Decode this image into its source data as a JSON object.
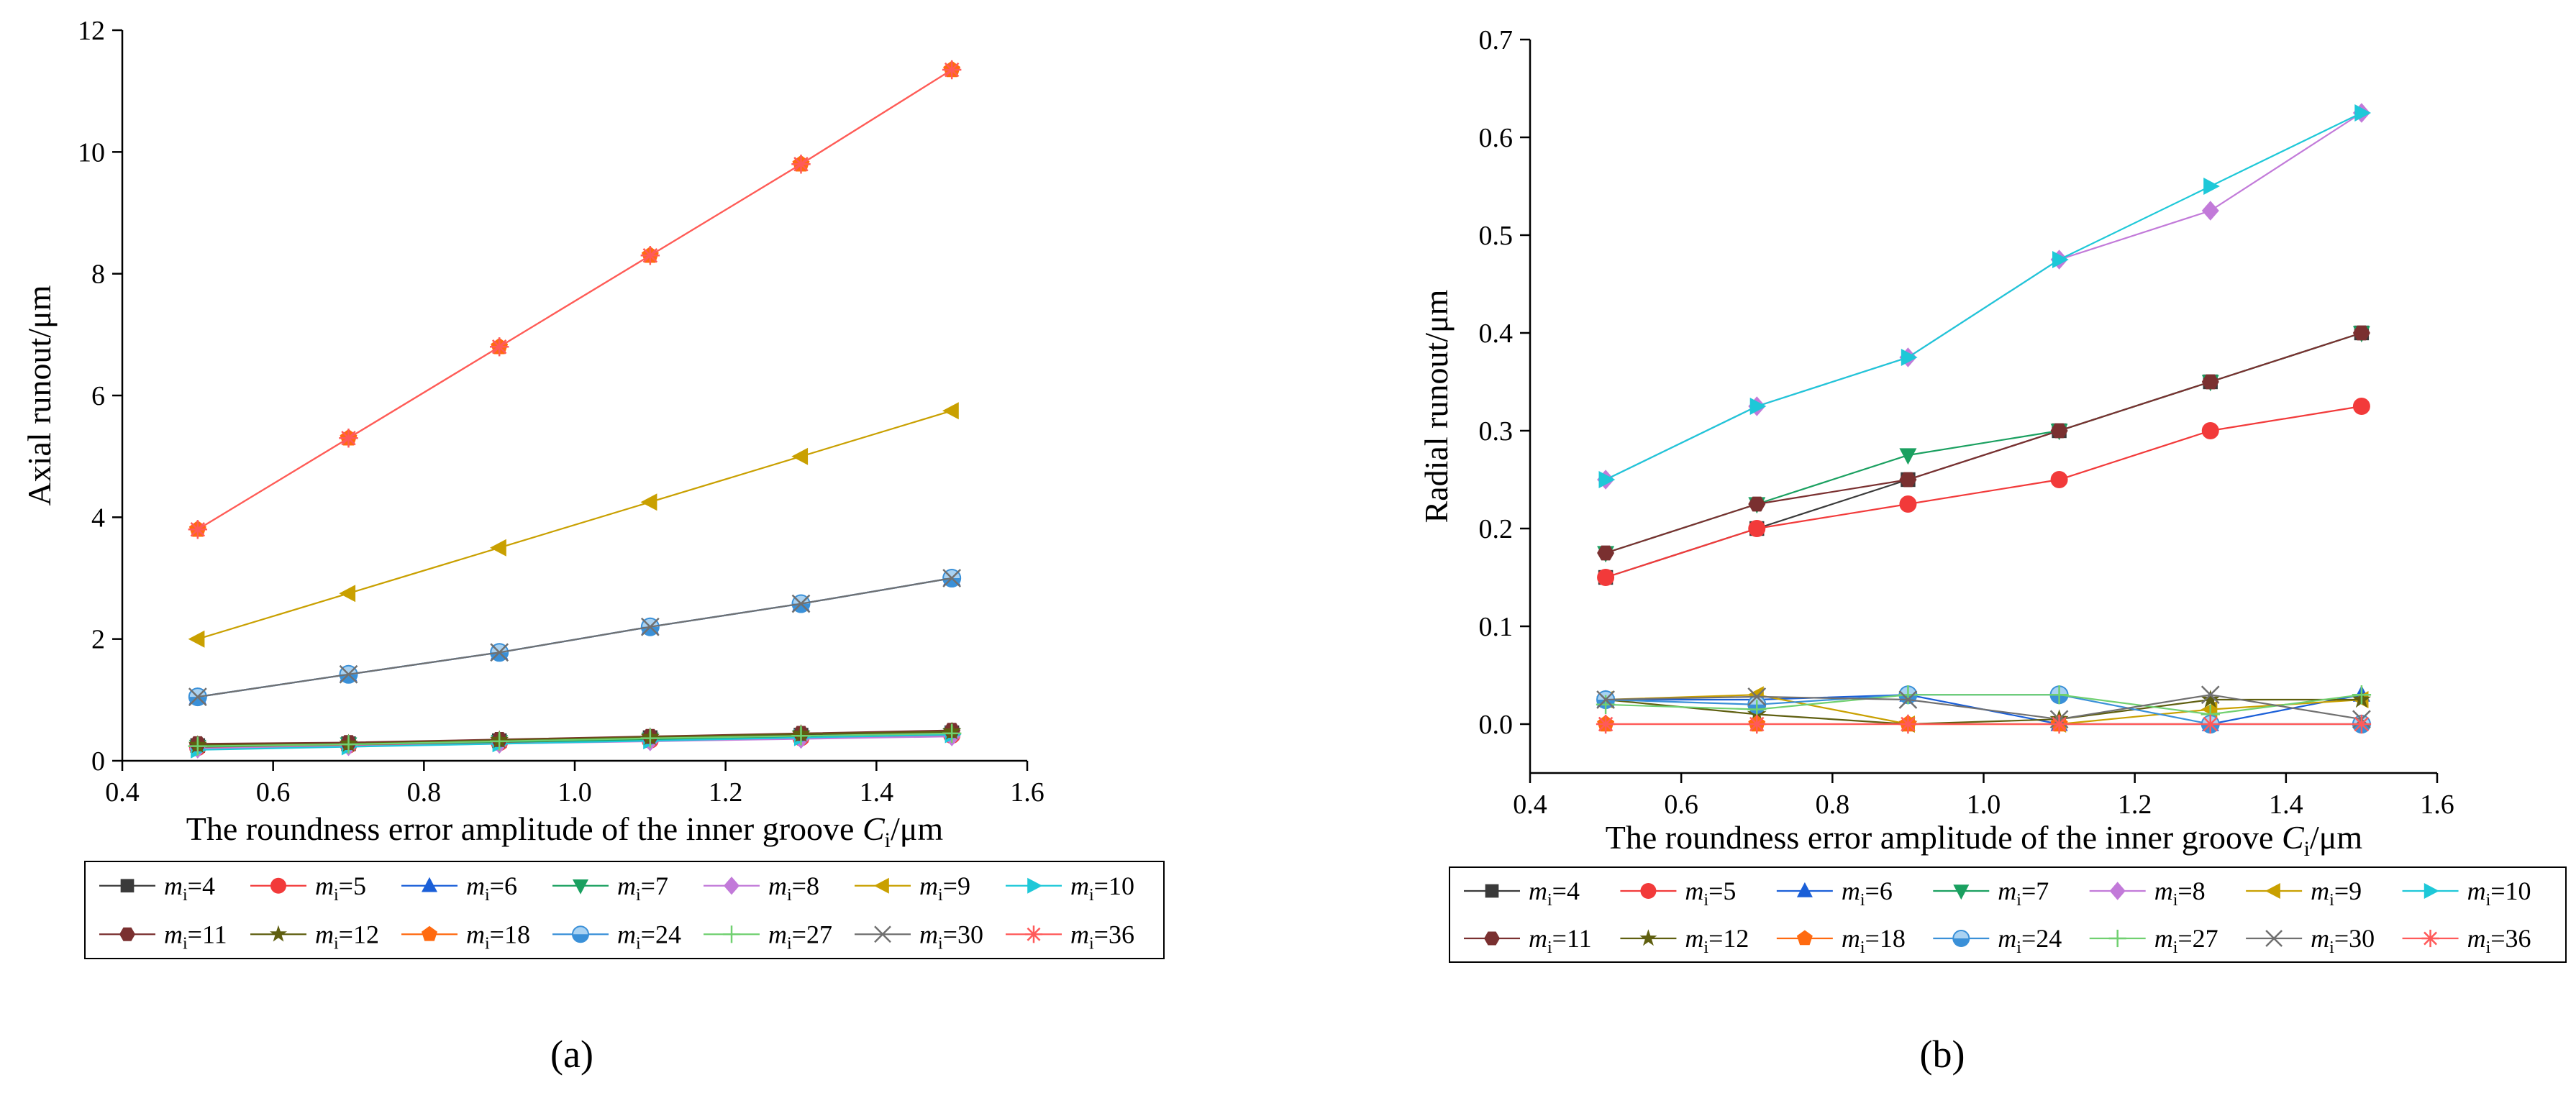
{
  "panel_labels": [
    "(a)",
    "(b)"
  ],
  "legend": [
    {
      "m": "4",
      "color": "#3a3a3a",
      "marker": "square"
    },
    {
      "m": "5",
      "color": "#f23a3a",
      "marker": "circle"
    },
    {
      "m": "6",
      "color": "#1a5fd8",
      "marker": "triangle-up"
    },
    {
      "m": "7",
      "color": "#1aa060",
      "marker": "triangle-down"
    },
    {
      "m": "8",
      "color": "#c27ad9",
      "marker": "diamond"
    },
    {
      "m": "9",
      "color": "#c9a000",
      "marker": "triangle-left"
    },
    {
      "m": "10",
      "color": "#1ec8d8",
      "marker": "triangle-right"
    },
    {
      "m": "11",
      "color": "#7a3030",
      "marker": "hexagon"
    },
    {
      "m": "12",
      "color": "#5f5f10",
      "marker": "star"
    },
    {
      "m": "18",
      "color": "#ff6a10",
      "marker": "pentagon"
    },
    {
      "m": "24",
      "color": "#3a90d8",
      "marker": "circle-half"
    },
    {
      "m": "27",
      "color": "#70d070",
      "marker": "plus"
    },
    {
      "m": "30",
      "color": "#707070",
      "marker": "cross"
    },
    {
      "m": "36",
      "color": "#ff5a5a",
      "marker": "asterisk"
    }
  ],
  "legend_prefix": "m",
  "legend_sub": "i",
  "legend_eq": "=",
  "chart_data": [
    {
      "type": "line",
      "id": "a",
      "xlabel_main": "The roundness error amplitude of the inner groove  ",
      "xlabel_var": "C",
      "xlabel_sub": "i",
      "xlabel_unit": "/μm",
      "ylabel": "Axial runout/μm",
      "xlim": [
        0.4,
        1.6
      ],
      "ylim": [
        0,
        12
      ],
      "xticks": [
        0.4,
        0.6,
        0.8,
        1.0,
        1.2,
        1.4,
        1.6
      ],
      "xtick_labels": [
        "0.4",
        "0.6",
        "0.8",
        "1.0",
        "1.2",
        "1.4",
        "1.6"
      ],
      "yticks": [
        0,
        2,
        4,
        6,
        8,
        10,
        12
      ],
      "ytick_labels": [
        "0",
        "2",
        "4",
        "6",
        "8",
        "10",
        "12"
      ],
      "x": [
        0.5,
        0.7,
        0.9,
        1.1,
        1.3,
        1.5
      ],
      "series": [
        {
          "name": "4",
          "values": [
            0.25,
            0.28,
            0.33,
            0.38,
            0.42,
            0.46
          ]
        },
        {
          "name": "5",
          "values": [
            0.22,
            0.26,
            0.3,
            0.34,
            0.38,
            0.42
          ]
        },
        {
          "name": "6",
          "values": [
            1.05,
            1.42,
            1.78,
            2.2,
            2.58,
            3.0
          ]
        },
        {
          "name": "7",
          "values": [
            0.23,
            0.27,
            0.31,
            0.35,
            0.39,
            0.43
          ]
        },
        {
          "name": "8",
          "values": [
            0.2,
            0.24,
            0.28,
            0.32,
            0.36,
            0.4
          ]
        },
        {
          "name": "9",
          "values": [
            2.0,
            2.75,
            3.5,
            4.25,
            5.0,
            5.75
          ]
        },
        {
          "name": "10",
          "values": [
            0.18,
            0.23,
            0.28,
            0.33,
            0.38,
            0.43
          ]
        },
        {
          "name": "11",
          "values": [
            0.28,
            0.3,
            0.35,
            0.4,
            0.45,
            0.5
          ]
        },
        {
          "name": "12",
          "values": [
            0.26,
            0.28,
            0.34,
            0.39,
            0.44,
            0.48
          ]
        },
        {
          "name": "18",
          "values": [
            3.8,
            5.3,
            6.8,
            8.3,
            9.8,
            11.35
          ]
        },
        {
          "name": "24",
          "values": [
            1.05,
            1.42,
            1.78,
            2.2,
            2.58,
            3.0
          ]
        },
        {
          "name": "27",
          "values": [
            0.24,
            0.27,
            0.32,
            0.37,
            0.41,
            0.45
          ]
        },
        {
          "name": "30",
          "values": [
            1.05,
            1.42,
            1.78,
            2.2,
            2.58,
            3.0
          ]
        },
        {
          "name": "36",
          "values": [
            3.8,
            5.3,
            6.8,
            8.3,
            9.8,
            11.35
          ]
        }
      ]
    },
    {
      "type": "line",
      "id": "b",
      "xlabel_main": "The roundness error amplitude of the inner groove ",
      "xlabel_var": "C",
      "xlabel_sub": "i",
      "xlabel_unit": "/μm",
      "ylabel": "Radial runout/μm",
      "xlim": [
        0.4,
        1.6
      ],
      "ylim": [
        -0.05,
        0.7
      ],
      "xticks": [
        0.4,
        0.6,
        0.8,
        1.0,
        1.2,
        1.4,
        1.6
      ],
      "xtick_labels": [
        "0.4",
        "0.6",
        "0.8",
        "1.0",
        "1.2",
        "1.4",
        "1.6"
      ],
      "yticks": [
        0.0,
        0.1,
        0.2,
        0.3,
        0.4,
        0.5,
        0.6,
        0.7
      ],
      "ytick_labels": [
        "0.0",
        "0.1",
        "0.2",
        "0.3",
        "0.4",
        "0.5",
        "0.6",
        "0.7"
      ],
      "x": [
        0.5,
        0.7,
        0.9,
        1.1,
        1.3,
        1.5
      ],
      "series": [
        {
          "name": "4",
          "values": [
            0.15,
            0.2,
            0.25,
            0.3,
            0.35,
            0.4
          ]
        },
        {
          "name": "5",
          "values": [
            0.15,
            0.2,
            0.225,
            0.25,
            0.3,
            0.325
          ]
        },
        {
          "name": "6",
          "values": [
            0.025,
            0.025,
            0.03,
            0.0,
            0.0,
            0.03
          ]
        },
        {
          "name": "7",
          "values": [
            0.175,
            0.225,
            0.275,
            0.3,
            0.35,
            0.4
          ]
        },
        {
          "name": "8",
          "values": [
            0.25,
            0.325,
            0.375,
            0.475,
            0.525,
            0.625
          ]
        },
        {
          "name": "9",
          "values": [
            0.025,
            0.03,
            0.0,
            0.0,
            0.015,
            0.025
          ]
        },
        {
          "name": "10",
          "values": [
            0.25,
            0.325,
            0.375,
            0.475,
            0.55,
            0.625
          ]
        },
        {
          "name": "11",
          "values": [
            0.175,
            0.225,
            0.25,
            0.3,
            0.35,
            0.4
          ]
        },
        {
          "name": "12",
          "values": [
            0.025,
            0.01,
            0.0,
            0.005,
            0.025,
            0.025
          ]
        },
        {
          "name": "18",
          "values": [
            0.0,
            0.0,
            0.0,
            0.0,
            0.0,
            0.0
          ]
        },
        {
          "name": "24",
          "values": [
            0.025,
            0.02,
            0.03,
            0.03,
            0.0,
            0.0
          ]
        },
        {
          "name": "27",
          "values": [
            0.02,
            0.015,
            0.03,
            0.03,
            0.01,
            0.03
          ]
        },
        {
          "name": "30",
          "values": [
            0.025,
            0.028,
            0.025,
            0.005,
            0.03,
            0.005
          ]
        },
        {
          "name": "36",
          "values": [
            0.0,
            0.0,
            0.0,
            0.0,
            0.0,
            0.0
          ]
        }
      ]
    }
  ]
}
